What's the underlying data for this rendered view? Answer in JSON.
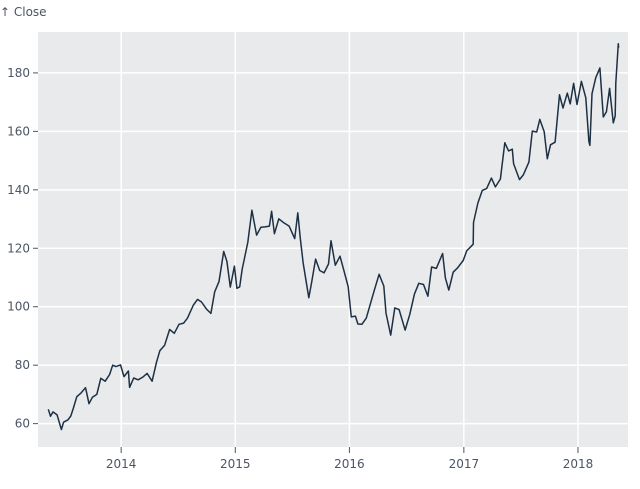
{
  "chart_data": {
    "type": "line",
    "title": "",
    "xlabel": "",
    "ylabel": "↑ Close",
    "x_ticks": [
      "2014",
      "2015",
      "2016",
      "2017",
      "2018"
    ],
    "y_ticks": [
      60,
      80,
      100,
      120,
      140,
      160,
      180
    ],
    "ylim": [
      52,
      194
    ],
    "xlim": [
      "2013-04-10",
      "2018-06-10"
    ],
    "grid": true,
    "colors": {
      "background": "#e9eaec",
      "grid": "#ffffff",
      "line": "#1d3044"
    },
    "series": [
      {
        "points": [
          [
            "2013-05-13",
            64.9
          ],
          [
            "2013-05-20",
            62.5
          ],
          [
            "2013-05-28",
            64.0
          ],
          [
            "2013-06-10",
            63.0
          ],
          [
            "2013-06-24",
            58.0
          ],
          [
            "2013-07-01",
            60.5
          ],
          [
            "2013-07-15",
            61.3
          ],
          [
            "2013-07-24",
            62.6
          ],
          [
            "2013-08-01",
            65.2
          ],
          [
            "2013-08-12",
            69.2
          ],
          [
            "2013-08-26",
            70.5
          ],
          [
            "2013-09-09",
            72.3
          ],
          [
            "2013-09-12",
            70.8
          ],
          [
            "2013-09-20",
            66.8
          ],
          [
            "2013-10-01",
            69.0
          ],
          [
            "2013-10-15",
            70.0
          ],
          [
            "2013-10-28",
            75.5
          ],
          [
            "2013-11-11",
            74.5
          ],
          [
            "2013-11-25",
            76.8
          ],
          [
            "2013-12-05",
            80.0
          ],
          [
            "2013-12-15",
            79.5
          ],
          [
            "2013-12-30",
            80.1
          ],
          [
            "2014-01-10",
            76.1
          ],
          [
            "2014-01-24",
            78.0
          ],
          [
            "2014-01-28",
            72.4
          ],
          [
            "2014-02-10",
            75.6
          ],
          [
            "2014-02-24",
            75.0
          ],
          [
            "2014-03-10",
            75.8
          ],
          [
            "2014-03-25",
            77.2
          ],
          [
            "2014-04-10",
            74.5
          ],
          [
            "2014-04-24",
            81.0
          ],
          [
            "2014-05-05",
            85.0
          ],
          [
            "2014-05-20",
            86.8
          ],
          [
            "2014-06-05",
            92.2
          ],
          [
            "2014-06-20",
            90.9
          ],
          [
            "2014-07-05",
            94.0
          ],
          [
            "2014-07-20",
            94.4
          ],
          [
            "2014-08-01",
            96.1
          ],
          [
            "2014-08-20",
            100.6
          ],
          [
            "2014-09-02",
            102.5
          ],
          [
            "2014-09-15",
            101.6
          ],
          [
            "2014-10-01",
            99.2
          ],
          [
            "2014-10-15",
            97.7
          ],
          [
            "2014-10-27",
            105.1
          ],
          [
            "2014-11-10",
            108.6
          ],
          [
            "2014-11-25",
            118.9
          ],
          [
            "2014-12-05",
            115.5
          ],
          [
            "2014-12-16",
            106.7
          ],
          [
            "2014-12-29",
            113.9
          ],
          [
            "2015-01-06",
            106.3
          ],
          [
            "2015-01-15",
            106.8
          ],
          [
            "2015-01-23",
            112.9
          ],
          [
            "2015-01-28",
            115.3
          ],
          [
            "2015-02-10",
            122.0
          ],
          [
            "2015-02-23",
            133.0
          ],
          [
            "2015-03-10",
            124.5
          ],
          [
            "2015-03-24",
            127.2
          ],
          [
            "2015-04-06",
            127.3
          ],
          [
            "2015-04-20",
            127.6
          ],
          [
            "2015-04-27",
            132.7
          ],
          [
            "2015-05-06",
            125.0
          ],
          [
            "2015-05-20",
            130.1
          ],
          [
            "2015-06-05",
            128.7
          ],
          [
            "2015-06-22",
            127.6
          ],
          [
            "2015-07-10",
            123.3
          ],
          [
            "2015-07-20",
            132.1
          ],
          [
            "2015-07-28",
            123.4
          ],
          [
            "2015-08-06",
            115.1
          ],
          [
            "2015-08-24",
            103.1
          ],
          [
            "2015-09-01",
            107.7
          ],
          [
            "2015-09-15",
            116.3
          ],
          [
            "2015-09-28",
            112.4
          ],
          [
            "2015-10-12",
            111.6
          ],
          [
            "2015-10-26",
            114.6
          ],
          [
            "2015-11-03",
            122.6
          ],
          [
            "2015-11-17",
            114.2
          ],
          [
            "2015-12-02",
            117.3
          ],
          [
            "2015-12-14",
            112.5
          ],
          [
            "2015-12-28",
            106.8
          ],
          [
            "2016-01-07",
            96.5
          ],
          [
            "2016-01-20",
            96.8
          ],
          [
            "2016-01-28",
            94.1
          ],
          [
            "2016-02-10",
            94.0
          ],
          [
            "2016-02-24",
            96.1
          ],
          [
            "2016-03-08",
            101.0
          ],
          [
            "2016-03-22",
            106.1
          ],
          [
            "2016-04-05",
            111.1
          ],
          [
            "2016-04-20",
            107.1
          ],
          [
            "2016-04-27",
            97.8
          ],
          [
            "2016-05-12",
            90.3
          ],
          [
            "2016-05-25",
            99.6
          ],
          [
            "2016-06-08",
            99.0
          ],
          [
            "2016-06-27",
            92.0
          ],
          [
            "2016-07-12",
            97.4
          ],
          [
            "2016-07-27",
            104.3
          ],
          [
            "2016-08-10",
            108.0
          ],
          [
            "2016-08-25",
            107.6
          ],
          [
            "2016-09-08",
            103.6
          ],
          [
            "2016-09-20",
            113.6
          ],
          [
            "2016-10-05",
            113.1
          ],
          [
            "2016-10-25",
            118.2
          ],
          [
            "2016-11-03",
            109.8
          ],
          [
            "2016-11-14",
            105.7
          ],
          [
            "2016-11-28",
            111.8
          ],
          [
            "2016-12-12",
            113.3
          ],
          [
            "2016-12-30",
            115.8
          ],
          [
            "2017-01-10",
            119.1
          ],
          [
            "2017-01-31",
            121.4
          ],
          [
            "2017-02-01",
            128.8
          ],
          [
            "2017-02-15",
            135.5
          ],
          [
            "2017-03-01",
            139.8
          ],
          [
            "2017-03-15",
            140.5
          ],
          [
            "2017-03-30",
            144.0
          ],
          [
            "2017-04-12",
            141.0
          ],
          [
            "2017-04-28",
            143.7
          ],
          [
            "2017-05-12",
            156.1
          ],
          [
            "2017-05-24",
            153.3
          ],
          [
            "2017-06-05",
            153.9
          ],
          [
            "2017-06-09",
            148.9
          ],
          [
            "2017-06-28",
            143.5
          ],
          [
            "2017-07-10",
            145.1
          ],
          [
            "2017-07-28",
            149.5
          ],
          [
            "2017-08-08",
            160.1
          ],
          [
            "2017-08-22",
            159.8
          ],
          [
            "2017-09-01",
            164.1
          ],
          [
            "2017-09-15",
            159.9
          ],
          [
            "2017-09-25",
            150.6
          ],
          [
            "2017-10-05",
            155.4
          ],
          [
            "2017-10-20",
            156.3
          ],
          [
            "2017-11-03",
            172.5
          ],
          [
            "2017-11-14",
            168.0
          ],
          [
            "2017-11-28",
            173.1
          ],
          [
            "2017-12-07",
            169.4
          ],
          [
            "2017-12-18",
            176.4
          ],
          [
            "2017-12-29",
            169.2
          ],
          [
            "2018-01-12",
            177.1
          ],
          [
            "2018-01-26",
            171.5
          ],
          [
            "2018-02-05",
            156.5
          ],
          [
            "2018-02-08",
            155.2
          ],
          [
            "2018-02-15",
            172.9
          ],
          [
            "2018-02-27",
            178.4
          ],
          [
            "2018-03-12",
            181.7
          ],
          [
            "2018-03-23",
            164.9
          ],
          [
            "2018-04-02",
            166.7
          ],
          [
            "2018-04-12",
            174.7
          ],
          [
            "2018-04-24",
            162.9
          ],
          [
            "2018-04-30",
            165.3
          ],
          [
            "2018-05-02",
            176.6
          ],
          [
            "2018-05-10",
            190.0
          ],
          [
            "2018-05-11",
            188.6
          ]
        ]
      }
    ]
  }
}
